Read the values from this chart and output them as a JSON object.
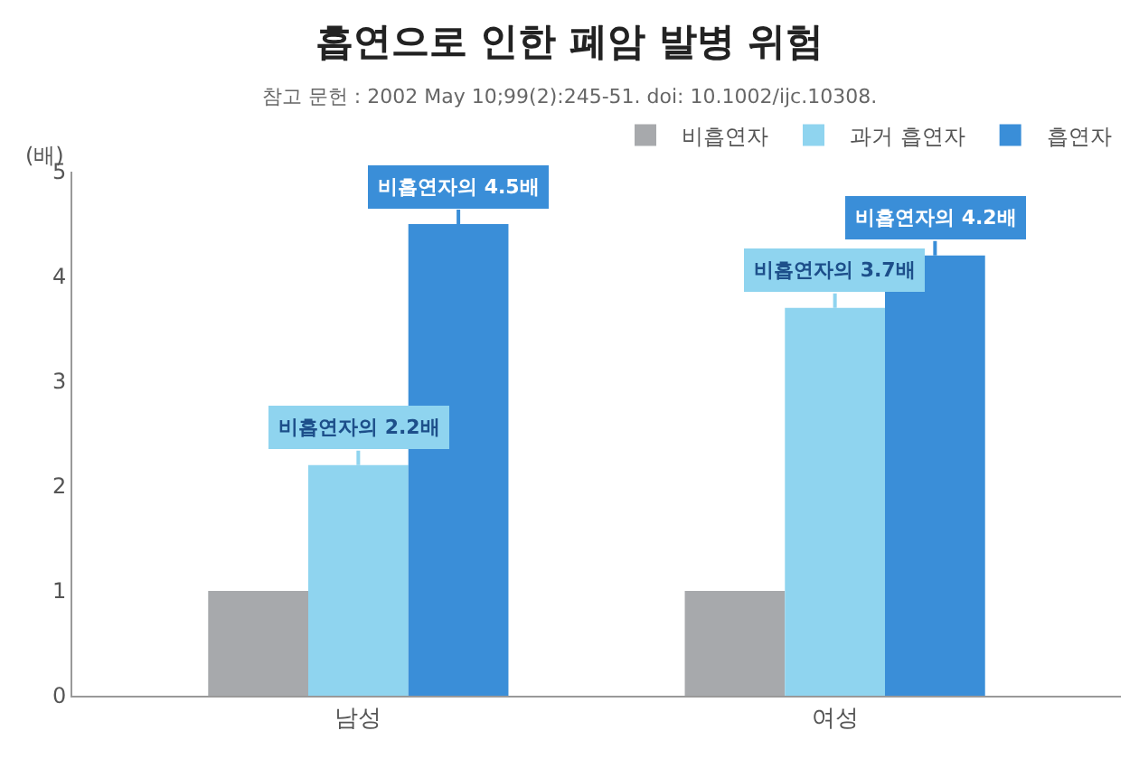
{
  "chart_data": {
    "type": "bar",
    "title": "흡연으로 인한 폐암 발병 위험",
    "subtitle": "참고 문헌 : 2002 May 10;99(2):245-51. doi: 10.1002/ijc.10308.",
    "ylabel": "(배)",
    "categories": [
      "남성",
      "여성"
    ],
    "series": [
      {
        "name": "비흡연자",
        "color": "#a7a9ac",
        "values": [
          1,
          1
        ]
      },
      {
        "name": "과거 흡연자",
        "color": "#8fd4ef",
        "values": [
          2.2,
          3.7
        ],
        "value_labels": [
          "비흡연자의 2.2배",
          "비흡연자의 3.7배"
        ]
      },
      {
        "name": "흡연자",
        "color": "#3a8ed8",
        "values": [
          4.5,
          4.2
        ],
        "value_labels": [
          "비흡연자의 4.5배",
          "비흡연자의 4.2배"
        ]
      }
    ],
    "ylim": [
      0,
      5
    ],
    "yticks": [
      0,
      1,
      2,
      3,
      4,
      5
    ],
    "legend": "top right"
  }
}
